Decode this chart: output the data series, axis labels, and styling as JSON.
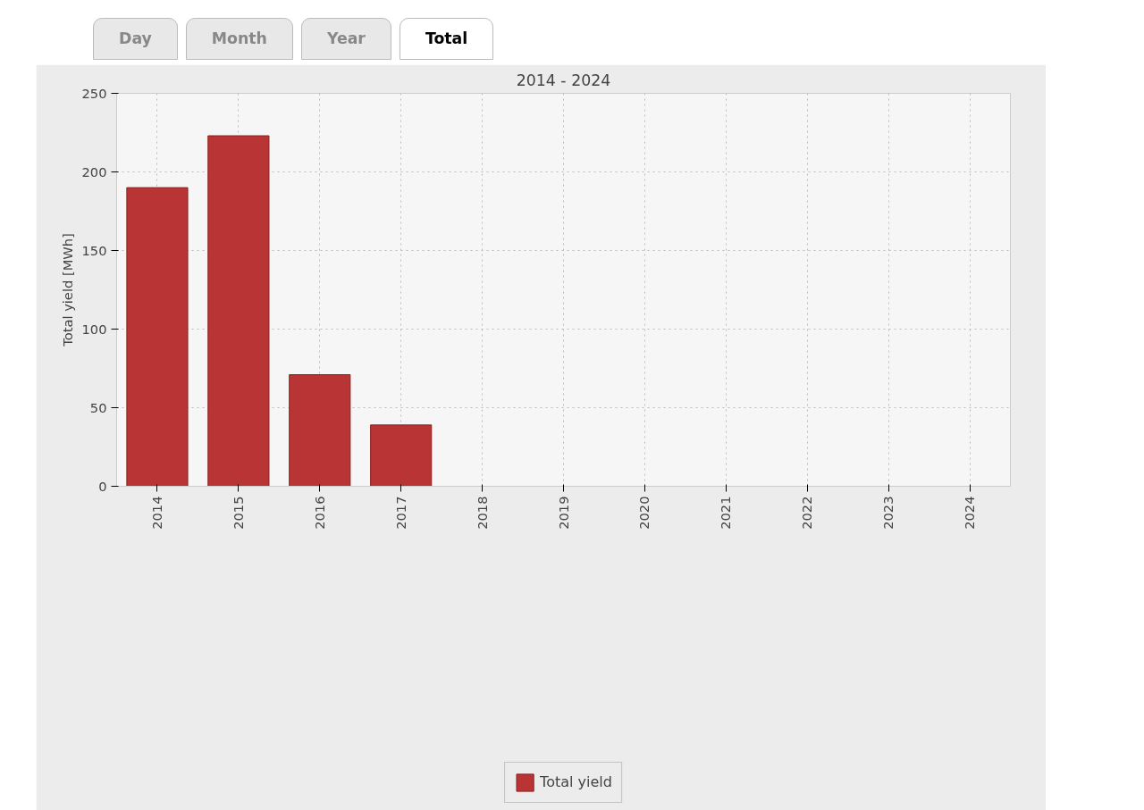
{
  "chart_data": {
    "type": "bar",
    "title": "2014 - 2024",
    "ylabel": "Total yield [MWh]",
    "categories": [
      "2014",
      "2015",
      "2016",
      "2017",
      "2018",
      "2019",
      "2020",
      "2021",
      "2022",
      "2023",
      "2024"
    ],
    "series": [
      {
        "name": "Total yield",
        "color": "#b93434",
        "values": [
          190,
          223,
          71,
          39,
          null,
          null,
          null,
          null,
          null,
          null,
          null
        ]
      }
    ],
    "ylim": [
      0,
      250
    ],
    "yticks": [
      0,
      50,
      100,
      150,
      200,
      250
    ],
    "grid": true,
    "legend": "bottom",
    "annotations": [
      "Day",
      "Month",
      "Year",
      "Total"
    ]
  }
}
